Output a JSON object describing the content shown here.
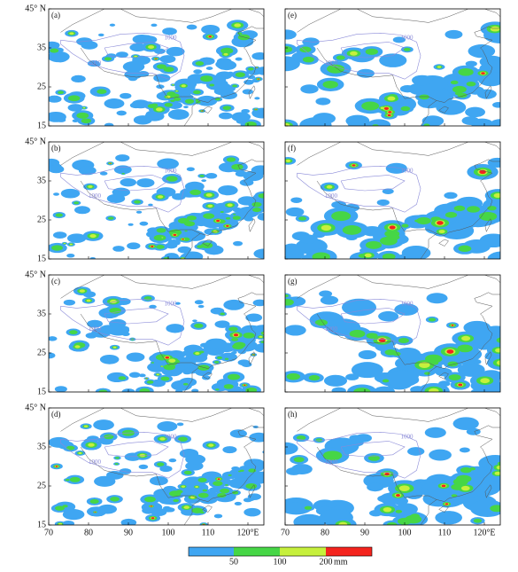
{
  "panels": [
    {
      "label": "(a)"
    },
    {
      "label": "(b)"
    },
    {
      "label": "(c)"
    },
    {
      "label": "(d)"
    },
    {
      "label": "(e)"
    },
    {
      "label": "(f)"
    },
    {
      "label": "(g)"
    },
    {
      "label": "(h)"
    }
  ],
  "y_axis": {
    "ticks": [
      "45° N",
      "35",
      "25",
      "15"
    ]
  },
  "x_axis": {
    "ticks": [
      "70",
      "80",
      "90",
      "100",
      "110",
      "120°E"
    ]
  },
  "contour_label": "1000",
  "colorbar": {
    "labels": [
      "50",
      "100",
      "200"
    ],
    "unit": "mm",
    "colors": [
      "#3fa6f2",
      "#46d646",
      "#c6f03c",
      "#f4241e"
    ]
  }
}
